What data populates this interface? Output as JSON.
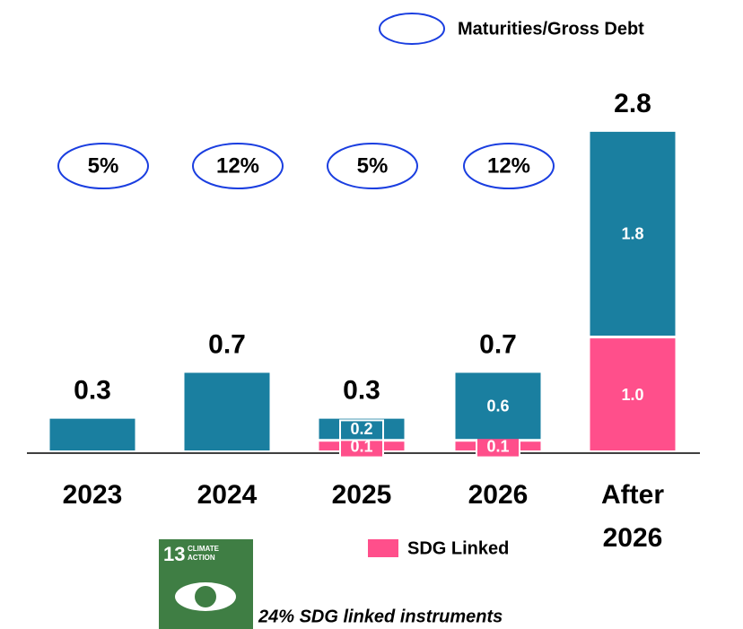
{
  "chart_data": {
    "type": "stacked_bar",
    "categories": [
      "2023",
      "2024",
      "2025",
      "2026",
      "After 2026"
    ],
    "series": [
      {
        "color": "#1a7fa0",
        "values": [
          0.3,
          0.7,
          0.2,
          0.6,
          1.8
        ],
        "value_labels": [
          null,
          null,
          "0.2",
          "0.6",
          "1.8"
        ]
      },
      {
        "name": "SDG Linked",
        "color": "#ff4f8b",
        "values": [
          null,
          null,
          0.1,
          0.1,
          1.0
        ],
        "value_labels": [
          null,
          null,
          "0.1",
          "0.1",
          "1.0"
        ]
      }
    ],
    "totals": [
      0.3,
      0.7,
      0.3,
      0.7,
      2.8
    ],
    "ratio_legend": "Maturities/Gross Debt",
    "ratio_labels": [
      "5%",
      "12%",
      "5%",
      "12%"
    ],
    "icon": {
      "number": "13",
      "line1": "CLIMATE",
      "line2": "ACTION"
    },
    "footnote": "24% SDG linked instruments"
  }
}
